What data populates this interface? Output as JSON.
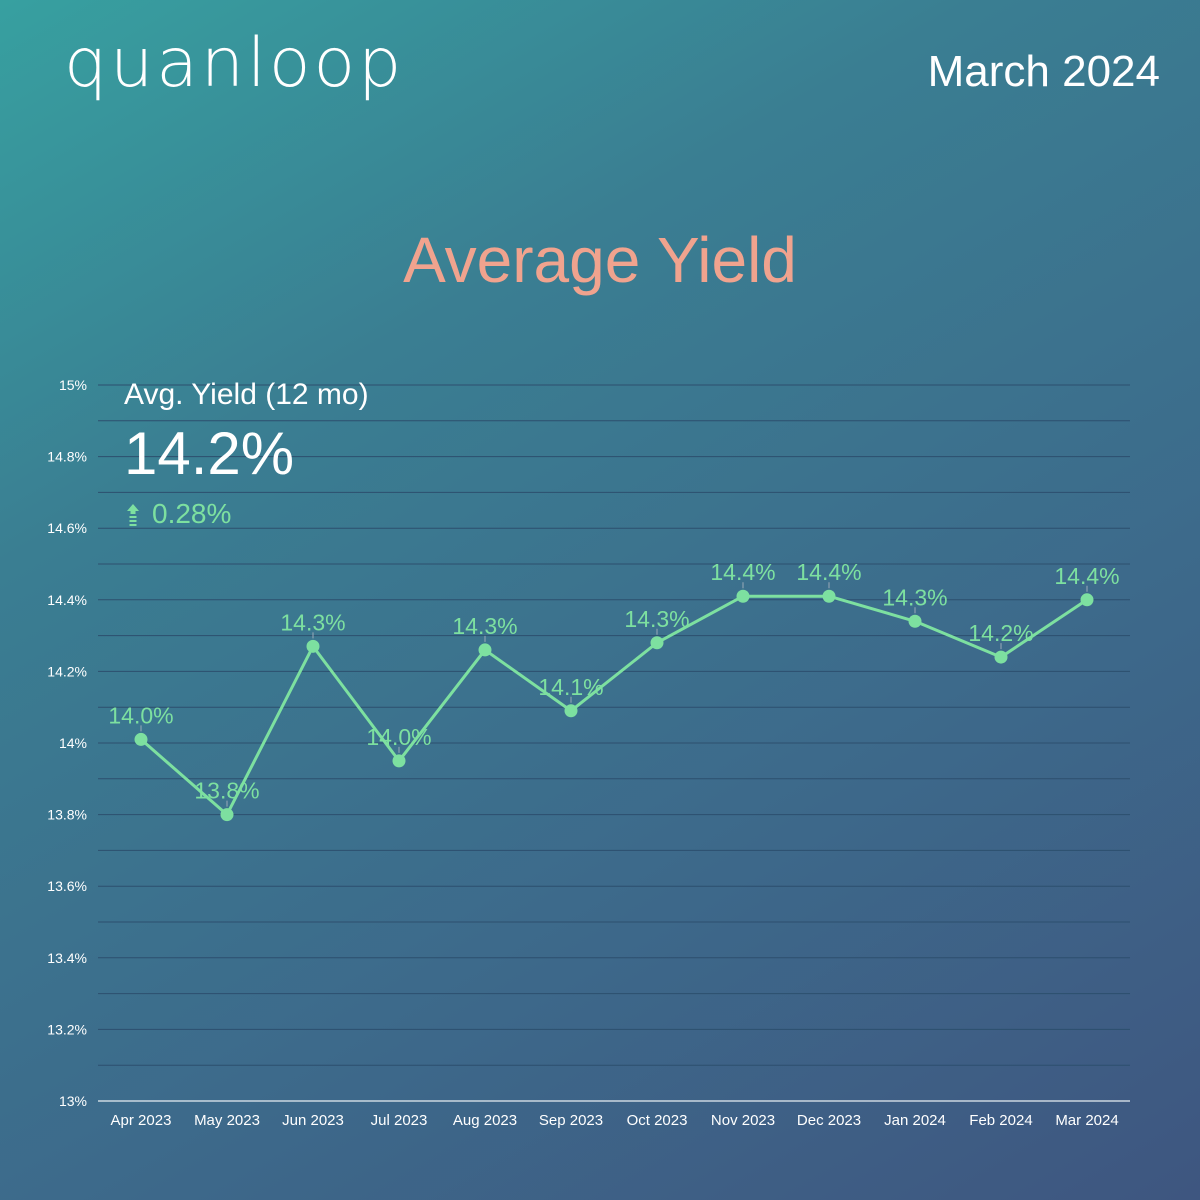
{
  "brand": {
    "logo_text": "quanloop"
  },
  "header": {
    "date": "March 2024"
  },
  "page_title": "Average Yield",
  "stat": {
    "label": "Avg. Yield (12 mo)",
    "value": "14.2%",
    "change": "0.28%",
    "change_icon": "arrow-up-icon"
  },
  "colors": {
    "line": "#7de0a0",
    "title": "#f0a38e",
    "grid": "#2d4f6e",
    "axis_text": "#ffffff"
  },
  "chart_data": {
    "type": "line",
    "title": "Average Yield",
    "categories": [
      "Apr 2023",
      "May 2023",
      "Jun 2023",
      "Jul 2023",
      "Aug 2023",
      "Sep 2023",
      "Oct 2023",
      "Nov 2023",
      "Dec 2023",
      "Jan 2024",
      "Feb 2024",
      "Mar 2024"
    ],
    "series": [
      {
        "values": [
          14.01,
          13.8,
          14.27,
          13.95,
          14.26,
          14.09,
          14.28,
          14.41,
          14.41,
          14.34,
          14.24,
          14.4
        ],
        "data_labels": [
          "14.0%",
          "13.8%",
          "14.3%",
          "14.0%",
          "14.3%",
          "14.1%",
          "14.3%",
          "14.4%",
          "14.4%",
          "14.3%",
          "14.2%",
          "14.4%"
        ]
      }
    ],
    "ylim": [
      13,
      15
    ],
    "y_ticks": [
      13,
      13.2,
      13.4,
      13.6,
      13.8,
      14,
      14.2,
      14.4,
      14.6,
      14.8,
      15
    ],
    "y_tick_labels": [
      "13%",
      "13.2%",
      "13.4%",
      "13.6%",
      "13.8%",
      "14%",
      "14.2%",
      "14.4%",
      "14.6%",
      "14.8%",
      "15%"
    ],
    "grid": true,
    "xlabel": "",
    "ylabel": ""
  }
}
